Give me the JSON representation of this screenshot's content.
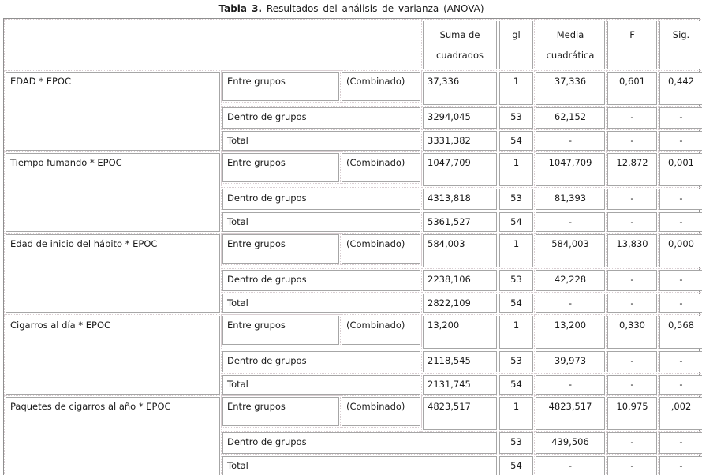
{
  "title": {
    "prefix": "Tabla 3.",
    "rest": " Resultados del análisis de varianza (ANOVA)"
  },
  "colors": {
    "cell_border": "#a6a6a6",
    "outer_border": "#8f8f8f",
    "dotted_grid": "#d9ced2",
    "text": "#1a1a1a",
    "background": "#ffffff"
  },
  "table": {
    "headers": [
      {
        "key": "suma",
        "label": "Suma de cuadrados"
      },
      {
        "key": "gl",
        "label": "gl"
      },
      {
        "key": "media",
        "label": "Media cuadrática"
      },
      {
        "key": "f",
        "label": "F"
      },
      {
        "key": "sig",
        "label": "Sig."
      }
    ],
    "blocks": [
      {
        "variable": "EDAD * EPOC",
        "rows": [
          {
            "group": "Entre grupos",
            "combined": "(Combinado)",
            "suma": "37,336",
            "gl": "1",
            "media": "37,336",
            "f": "0,601",
            "sig": "0,442"
          },
          {
            "group": "Dentro de grupos",
            "suma": "3294,045",
            "gl": "53",
            "media": "62,152",
            "f": "-",
            "sig": "-"
          },
          {
            "group": "Total",
            "suma": "3331,382",
            "gl": "54",
            "media": "-",
            "f": "-",
            "sig": "-"
          }
        ]
      },
      {
        "variable": "Tiempo fumando * EPOC",
        "rows": [
          {
            "group": "Entre grupos",
            "combined": "(Combinado)",
            "suma": "1047,709",
            "gl": "1",
            "media": "1047,709",
            "f": "12,872",
            "sig": "0,001"
          },
          {
            "group": "Dentro de grupos",
            "suma": "4313,818",
            "gl": "53",
            "media": "81,393",
            "f": "-",
            "sig": "-"
          },
          {
            "group": "Total",
            "suma": "5361,527",
            "gl": "54",
            "media": "-",
            "f": "-",
            "sig": "-"
          }
        ]
      },
      {
        "variable": "Edad de inicio del hábito * EPOC",
        "rows": [
          {
            "group": "Entre grupos",
            "combined": "(Combinado)",
            "suma": "584,003",
            "gl": "1",
            "media": "584,003",
            "f": "13,830",
            "sig": "0,000"
          },
          {
            "group": "Dentro de grupos",
            "suma": "2238,106",
            "gl": "53",
            "media": "42,228",
            "f": "-",
            "sig": "-"
          },
          {
            "group": "Total",
            "suma": "2822,109",
            "gl": "54",
            "media": "-",
            "f": "-",
            "sig": "-"
          }
        ]
      },
      {
        "variable": "Cigarros al día * EPOC",
        "rows": [
          {
            "group": "Entre grupos",
            "combined": "(Combinado)",
            "suma": "13,200",
            "gl": "1",
            "media": "13,200",
            "f": "0,330",
            "sig": "0,568"
          },
          {
            "group": "Dentro de grupos",
            "suma": "2118,545",
            "gl": "53",
            "media": "39,973",
            "f": "-",
            "sig": "-"
          },
          {
            "group": "Total",
            "suma": "2131,745",
            "gl": "54",
            "media": "-",
            "f": "-",
            "sig": "-"
          }
        ]
      },
      {
        "variable": "Paquetes de cigarros al año * EPOC",
        "rows": [
          {
            "group": "Entre grupos",
            "combined": "(Combinado)",
            "suma": "4823,517",
            "gl": "1",
            "media": "4823,517",
            "f": "10,975",
            "sig": ",002"
          },
          {
            "group": "Dentro de grupos",
            "gl": "53",
            "media": "439,506",
            "f": "-",
            "sig": "-"
          },
          {
            "group": "Total",
            "gl": "54",
            "media": "-",
            "f": "-",
            "sig": "-"
          }
        ]
      }
    ]
  }
}
